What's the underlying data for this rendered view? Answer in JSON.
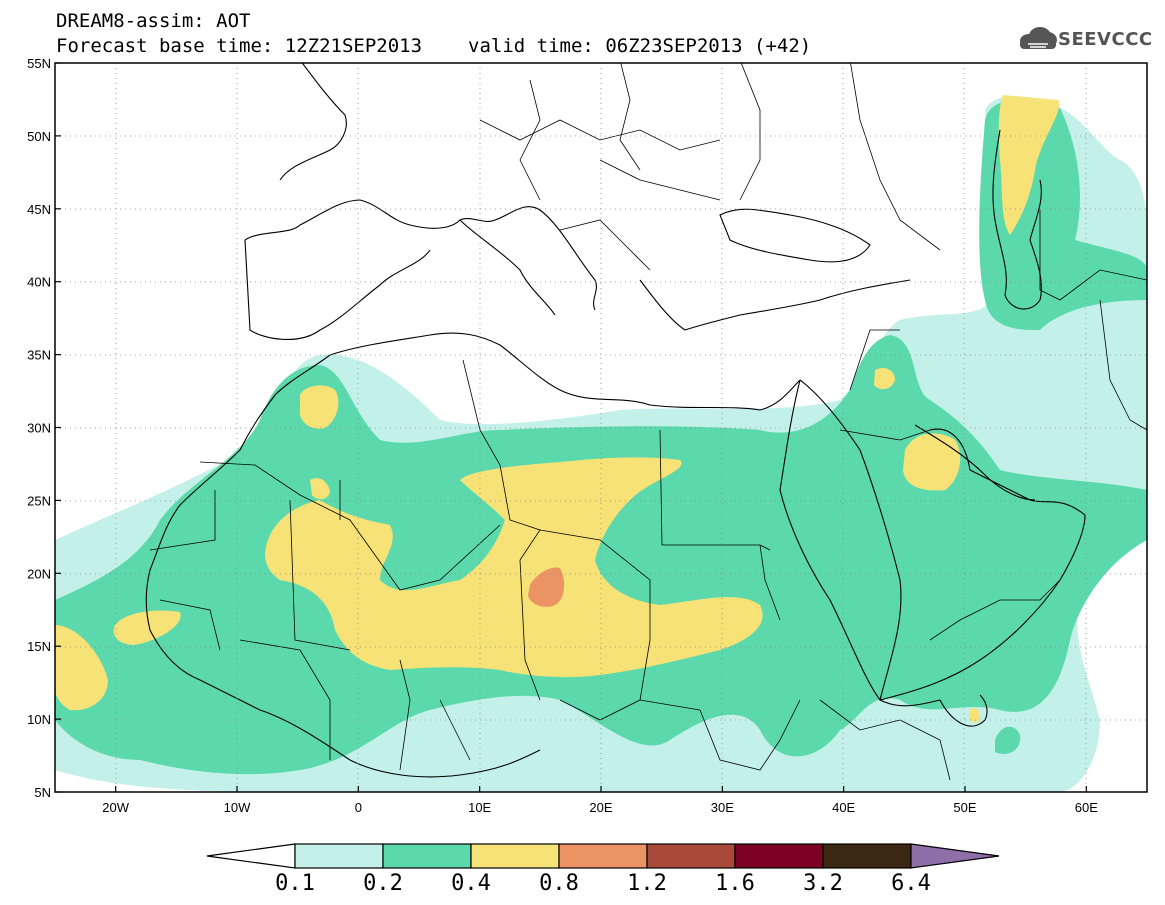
{
  "header": {
    "line1": "DREAM8-assim: AOT",
    "base_time": "Forecast base time: 12Z21SEP2013",
    "valid_time": "valid time: 06Z23SEP2013 (+42)"
  },
  "logo": {
    "text": "SEEVCCC",
    "icon": "cloud-icon"
  },
  "map": {
    "lon_range": [
      -25,
      65
    ],
    "lat_range": [
      5,
      55
    ],
    "lat_labels": [
      "55N",
      "50N",
      "45N",
      "40N",
      "35N",
      "30N",
      "25N",
      "20N",
      "15N",
      "10N",
      "5N"
    ],
    "lon_labels": [
      "20W",
      "10W",
      "0",
      "10E",
      "20E",
      "30E",
      "40E",
      "50E",
      "60E"
    ]
  },
  "colorbar": {
    "labels": [
      "0.1",
      "0.2",
      "0.4",
      "0.8",
      "1.2",
      "1.6",
      "3.2",
      "6.4"
    ],
    "colors": [
      "#ffffff",
      "#c4f0ea",
      "#5cd9ac",
      "#f6e277",
      "#ec9364",
      "#a8493a",
      "#7d0025",
      "#3a2812",
      "#8f6fa8"
    ]
  }
}
